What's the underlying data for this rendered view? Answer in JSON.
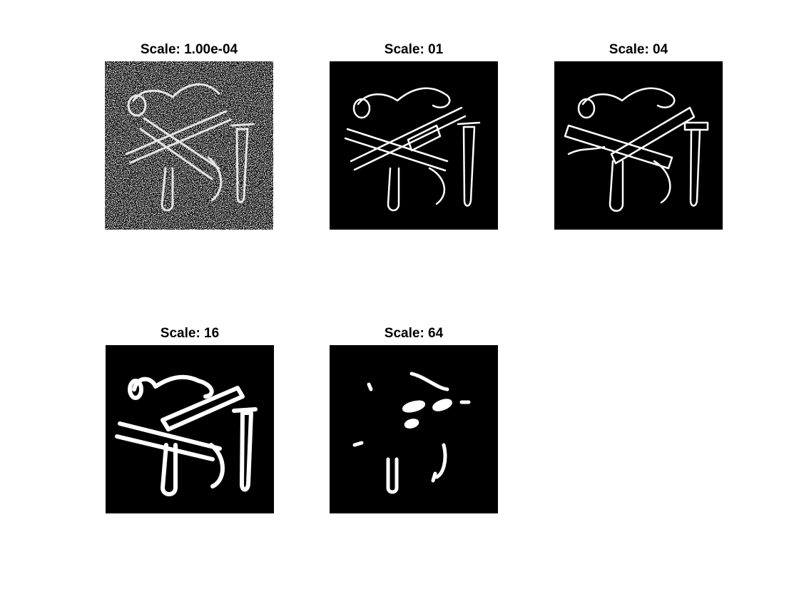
{
  "figure": {
    "panels": [
      {
        "title": "Scale: 1.00e-04",
        "image": "edge-map-noisy"
      },
      {
        "title": "Scale: 01",
        "image": "edge-map-fine"
      },
      {
        "title": "Scale: 04",
        "image": "edge-map-medium"
      },
      {
        "title": "Scale: 16",
        "image": "edge-map-coarse"
      },
      {
        "title": "Scale: 64",
        "image": "edge-map-sparse"
      }
    ],
    "colors": {
      "background": "#ffffff",
      "image_background": "#000000",
      "edges": "#ffffff"
    }
  }
}
